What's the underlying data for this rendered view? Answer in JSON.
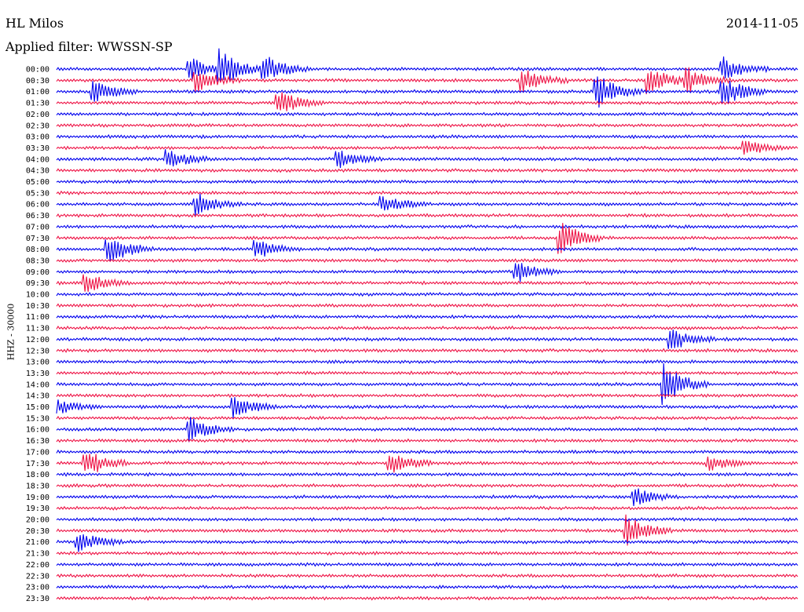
{
  "header": {
    "station": "HL Milos",
    "date": "2014-11-05",
    "filter": "Applied filter: WWSSN-SP"
  },
  "axis": {
    "ylabel": "HHZ - 30000"
  },
  "colors": {
    "blue": "#0000ee",
    "red": "#ee1144"
  },
  "chart_data": {
    "type": "line",
    "title": "HL Milos",
    "subtitle": "Applied filter: WWSSN-SP",
    "date": "2014-11-05",
    "ylabel": "HHZ - 30000",
    "rows": [
      "00:00",
      "00:30",
      "01:00",
      "01:30",
      "02:00",
      "02:30",
      "03:00",
      "03:30",
      "04:00",
      "04:30",
      "05:00",
      "05:30",
      "06:00",
      "06:30",
      "07:00",
      "07:30",
      "08:00",
      "08:30",
      "09:00",
      "09:30",
      "10:00",
      "10:30",
      "11:00",
      "11:30",
      "12:00",
      "12:30",
      "13:00",
      "13:30",
      "14:00",
      "14:30",
      "15:00",
      "15:30",
      "16:00",
      "16:30",
      "17:00",
      "17:30",
      "18:00",
      "18:30",
      "19:00",
      "19:30",
      "20:00",
      "20:30",
      "21:00",
      "21:30",
      "22:00",
      "22:30",
      "23:00",
      "23:30"
    ],
    "trace_colors": [
      "blue",
      "red"
    ],
    "events": [
      {
        "row": "00:00",
        "t": 0.18,
        "amp": 0.9
      },
      {
        "row": "00:00",
        "t": 0.22,
        "amp": 1.4
      },
      {
        "row": "00:00",
        "t": 0.28,
        "amp": 1.2
      },
      {
        "row": "00:00",
        "t": 0.9,
        "amp": 0.9
      },
      {
        "row": "00:30",
        "t": 0.19,
        "amp": 0.9
      },
      {
        "row": "00:30",
        "t": 0.63,
        "amp": 1.0
      },
      {
        "row": "00:30",
        "t": 0.8,
        "amp": 1.1
      },
      {
        "row": "00:30",
        "t": 0.85,
        "amp": 1.0
      },
      {
        "row": "01:00",
        "t": 0.05,
        "amp": 0.9
      },
      {
        "row": "01:00",
        "t": 0.73,
        "amp": 1.3
      },
      {
        "row": "01:00",
        "t": 0.9,
        "amp": 1.2
      },
      {
        "row": "01:30",
        "t": 0.3,
        "amp": 1.0
      },
      {
        "row": "03:30",
        "t": 0.93,
        "amp": 0.6
      },
      {
        "row": "04:00",
        "t": 0.15,
        "amp": 0.8
      },
      {
        "row": "04:00",
        "t": 0.38,
        "amp": 0.7
      },
      {
        "row": "06:00",
        "t": 0.19,
        "amp": 0.9
      },
      {
        "row": "06:00",
        "t": 0.44,
        "amp": 0.7
      },
      {
        "row": "07:30",
        "t": 0.68,
        "amp": 1.3
      },
      {
        "row": "08:00",
        "t": 0.07,
        "amp": 1.2
      },
      {
        "row": "08:00",
        "t": 0.27,
        "amp": 0.8
      },
      {
        "row": "09:00",
        "t": 0.62,
        "amp": 0.9
      },
      {
        "row": "09:30",
        "t": 0.04,
        "amp": 0.8
      },
      {
        "row": "12:00",
        "t": 0.83,
        "amp": 0.9
      },
      {
        "row": "14:00",
        "t": 0.82,
        "amp": 1.6
      },
      {
        "row": "15:00",
        "t": 0.0,
        "amp": 0.6
      },
      {
        "row": "15:00",
        "t": 0.24,
        "amp": 0.8
      },
      {
        "row": "16:00",
        "t": 0.18,
        "amp": 1.0
      },
      {
        "row": "17:30",
        "t": 0.04,
        "amp": 1.1
      },
      {
        "row": "17:30",
        "t": 0.45,
        "amp": 0.9
      },
      {
        "row": "17:30",
        "t": 0.88,
        "amp": 0.6
      },
      {
        "row": "19:00",
        "t": 0.78,
        "amp": 0.7
      },
      {
        "row": "20:30",
        "t": 0.77,
        "amp": 1.2
      },
      {
        "row": "21:00",
        "t": 0.03,
        "amp": 0.8
      }
    ]
  }
}
